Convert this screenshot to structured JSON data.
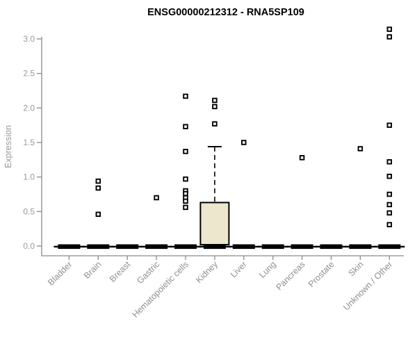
{
  "chart_data": {
    "type": "boxplot",
    "title": "ENSG00000212312 - RNA5SP109",
    "ylabel": "Expression",
    "ylim": [
      0.0,
      3.0
    ],
    "grid": false,
    "legend": "none",
    "yticks": [
      {
        "value": 0.0,
        "label": "0.0"
      },
      {
        "value": 0.5,
        "label": "0.5"
      },
      {
        "value": 1.0,
        "label": "1.0"
      },
      {
        "value": 1.5,
        "label": "1.5"
      },
      {
        "value": 2.0,
        "label": "2.0"
      },
      {
        "value": 2.5,
        "label": "2.5"
      },
      {
        "value": 3.0,
        "label": "3.0"
      }
    ],
    "categories": [
      "Bladder",
      "Brain",
      "Breast",
      "Gastric",
      "Hematopoietic cells",
      "Kidney",
      "Liver",
      "Lung",
      "Pancreas",
      "Prostate",
      "Skin",
      "Unknown / Other"
    ],
    "groups": [
      {
        "category": "Bladder",
        "zero_bar": true,
        "median": 0.0,
        "points": []
      },
      {
        "category": "Brain",
        "zero_bar": true,
        "median": 0.0,
        "points": [
          0.94,
          0.84,
          0.46
        ]
      },
      {
        "category": "Breast",
        "zero_bar": true,
        "median": 0.0,
        "points": []
      },
      {
        "category": "Gastric",
        "zero_bar": true,
        "median": 0.0,
        "points": [
          0.7
        ]
      },
      {
        "category": "Hematopoietic cells",
        "zero_bar": true,
        "median": 0.0,
        "points": [
          2.17,
          1.73,
          1.37,
          0.97,
          0.8,
          0.76,
          0.7,
          0.65,
          0.56
        ]
      },
      {
        "category": "Kidney",
        "zero_bar": true,
        "median": 0.0,
        "box": {
          "q1": 0.02,
          "q3": 0.63,
          "whisker_high": 1.44
        },
        "points": [
          2.11,
          2.02,
          1.77
        ]
      },
      {
        "category": "Liver",
        "zero_bar": true,
        "median": 0.0,
        "points": [
          1.5
        ]
      },
      {
        "category": "Lung",
        "zero_bar": true,
        "median": 0.0,
        "points": []
      },
      {
        "category": "Pancreas",
        "zero_bar": true,
        "median": 0.0,
        "points": [
          1.28
        ]
      },
      {
        "category": "Prostate",
        "zero_bar": true,
        "median": 0.0,
        "points": []
      },
      {
        "category": "Skin",
        "zero_bar": true,
        "median": 0.0,
        "points": [
          1.41
        ]
      },
      {
        "category": "Unknown / Other",
        "zero_bar": true,
        "median": 0.0,
        "points": [
          3.14,
          3.03,
          1.75,
          1.22,
          1.01,
          0.75,
          0.6,
          0.48,
          0.31
        ]
      }
    ],
    "colors": {
      "box_fill": "#ece7cd",
      "box_border": "#000000",
      "point_border": "#000000",
      "point_fill": "#ffffff",
      "zero_bar": "#000000",
      "axis": "#8a8a8a",
      "tick_label": "#999999",
      "title": "#000000"
    }
  }
}
